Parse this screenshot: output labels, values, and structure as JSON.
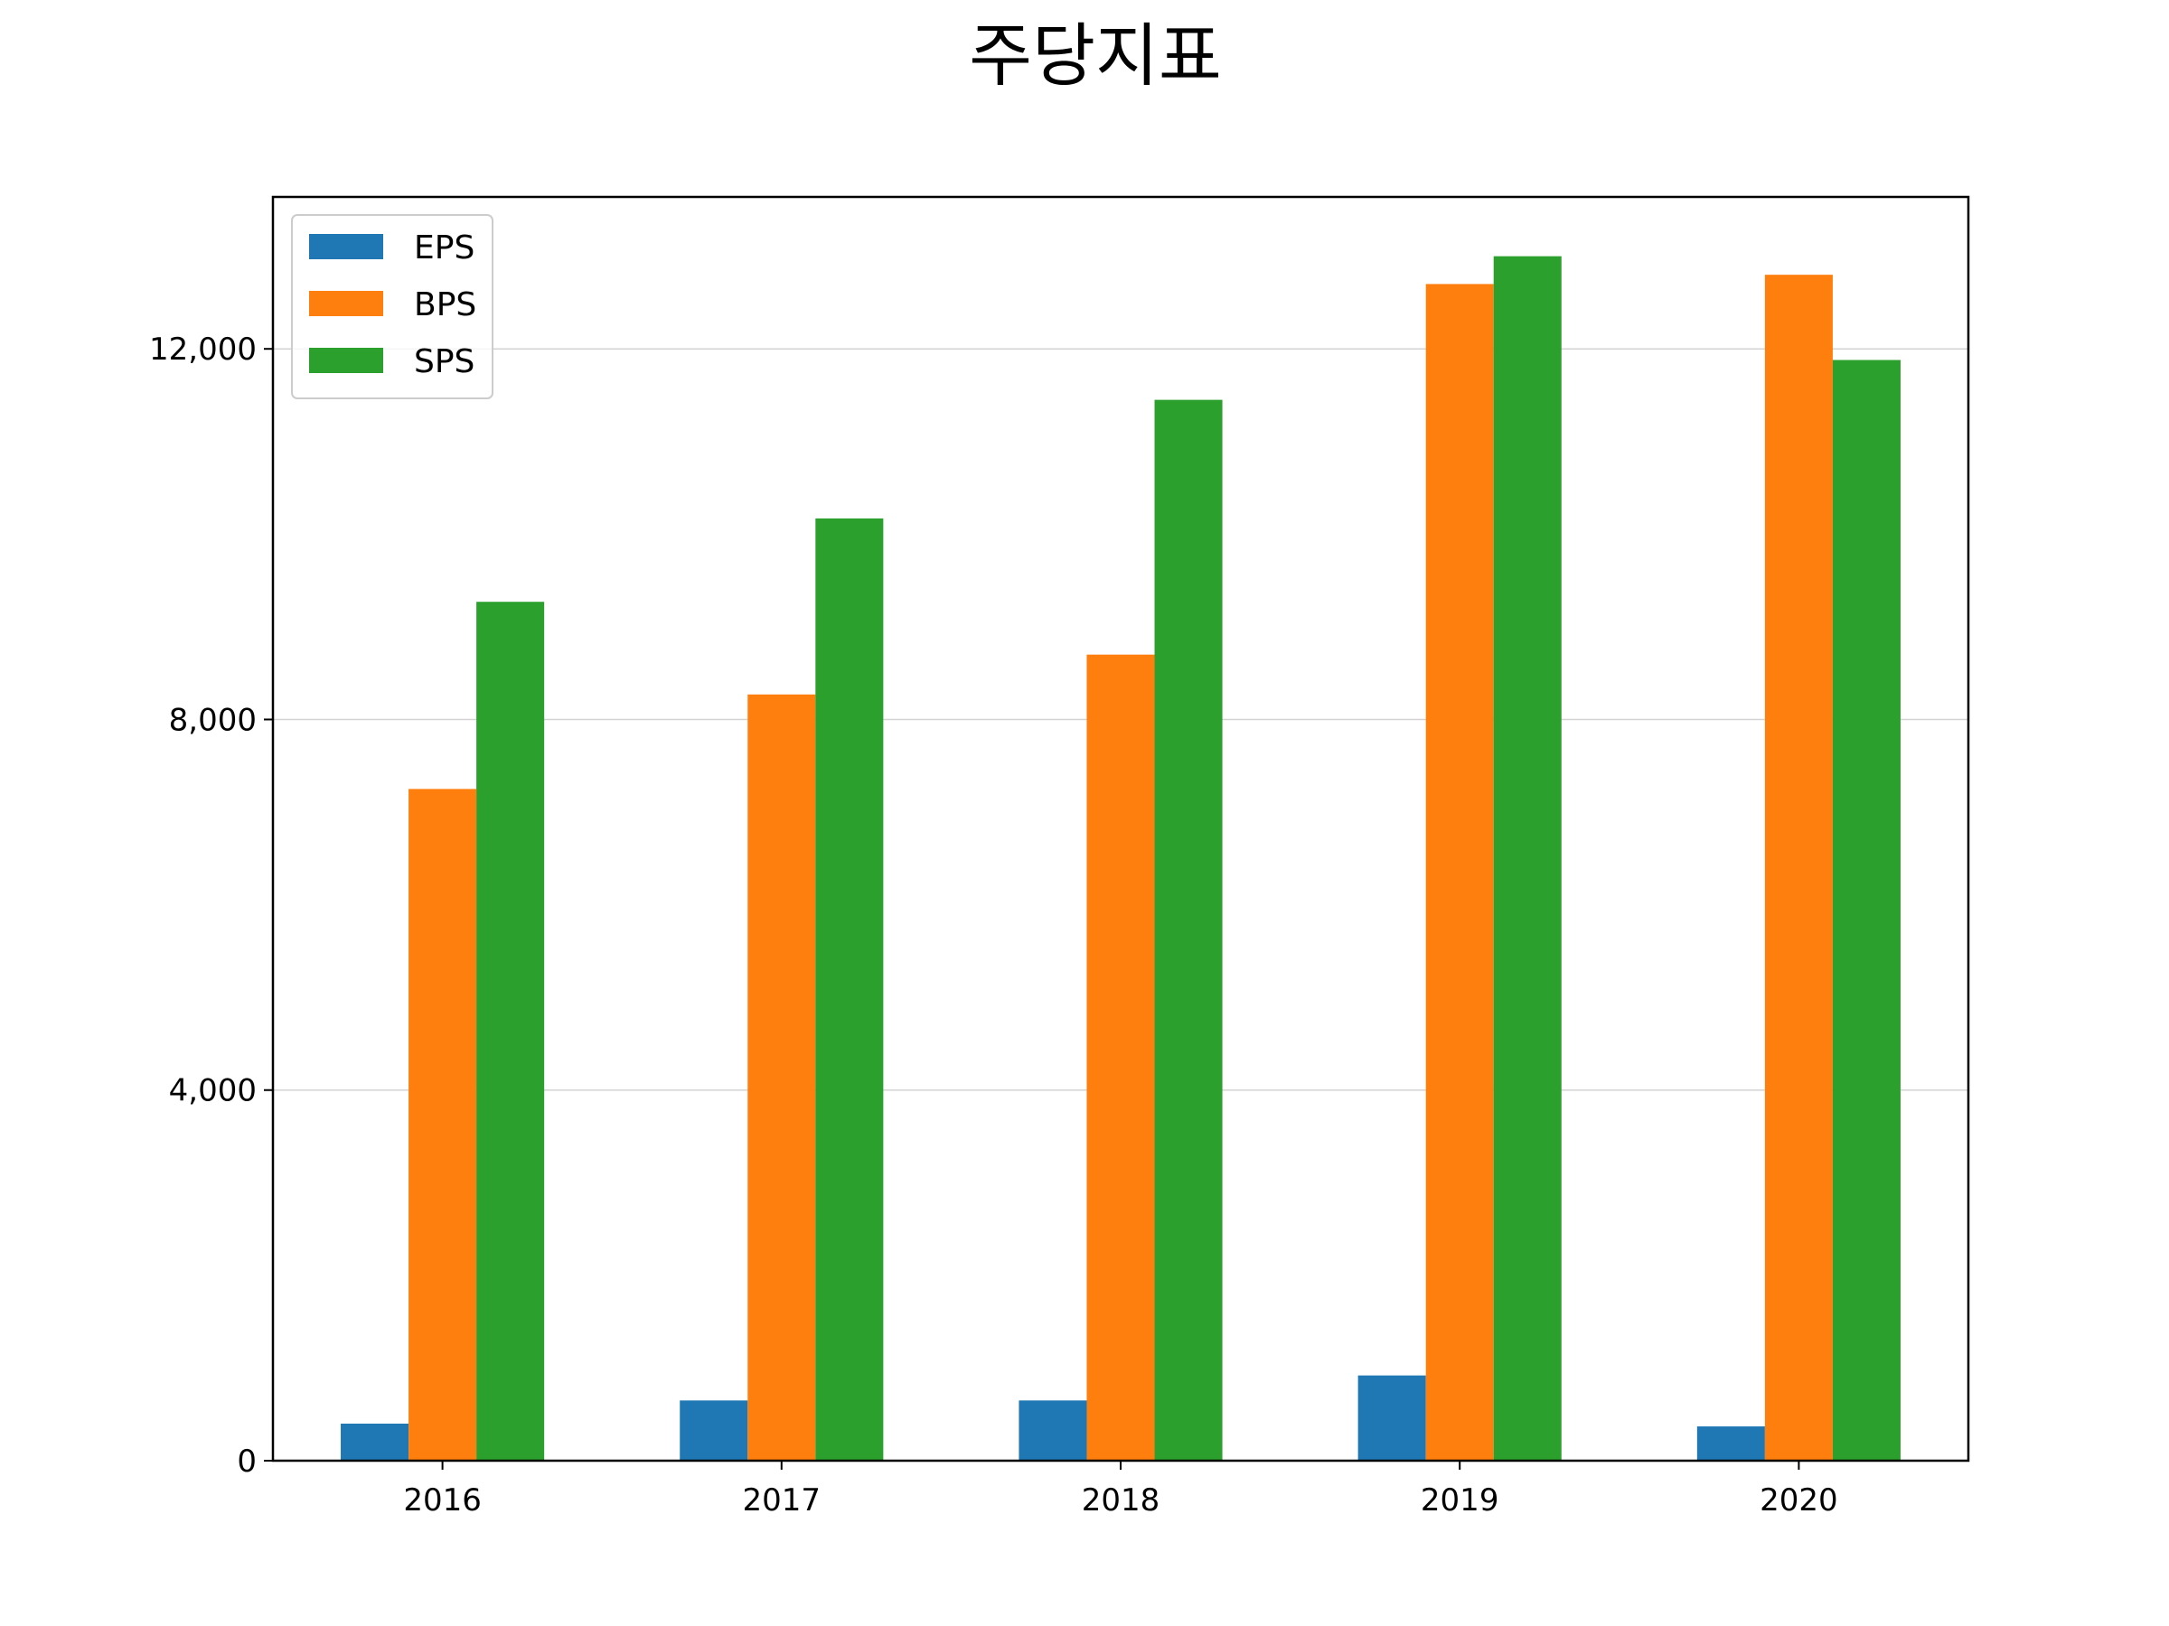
{
  "chart_data": {
    "type": "bar",
    "title": "주당지표",
    "categories": [
      "2016",
      "2017",
      "2018",
      "2019",
      "2020"
    ],
    "series": [
      {
        "name": "EPS",
        "color": "#1f77b4",
        "values": [
          400,
          650,
          650,
          920,
          370
        ]
      },
      {
        "name": "BPS",
        "color": "#ff7f0e",
        "values": [
          7250,
          8270,
          8700,
          12700,
          12800
        ]
      },
      {
        "name": "SPS",
        "color": "#2ca02c",
        "values": [
          9270,
          10170,
          11450,
          13000,
          11880
        ]
      }
    ],
    "ylim": [
      0,
      13640
    ],
    "yticks": [
      0,
      4000,
      8000,
      12000
    ],
    "ytick_labels": [
      "0",
      "4,000",
      "8,000",
      "12,000"
    ],
    "grid": "y",
    "legend_position": "top-left"
  }
}
